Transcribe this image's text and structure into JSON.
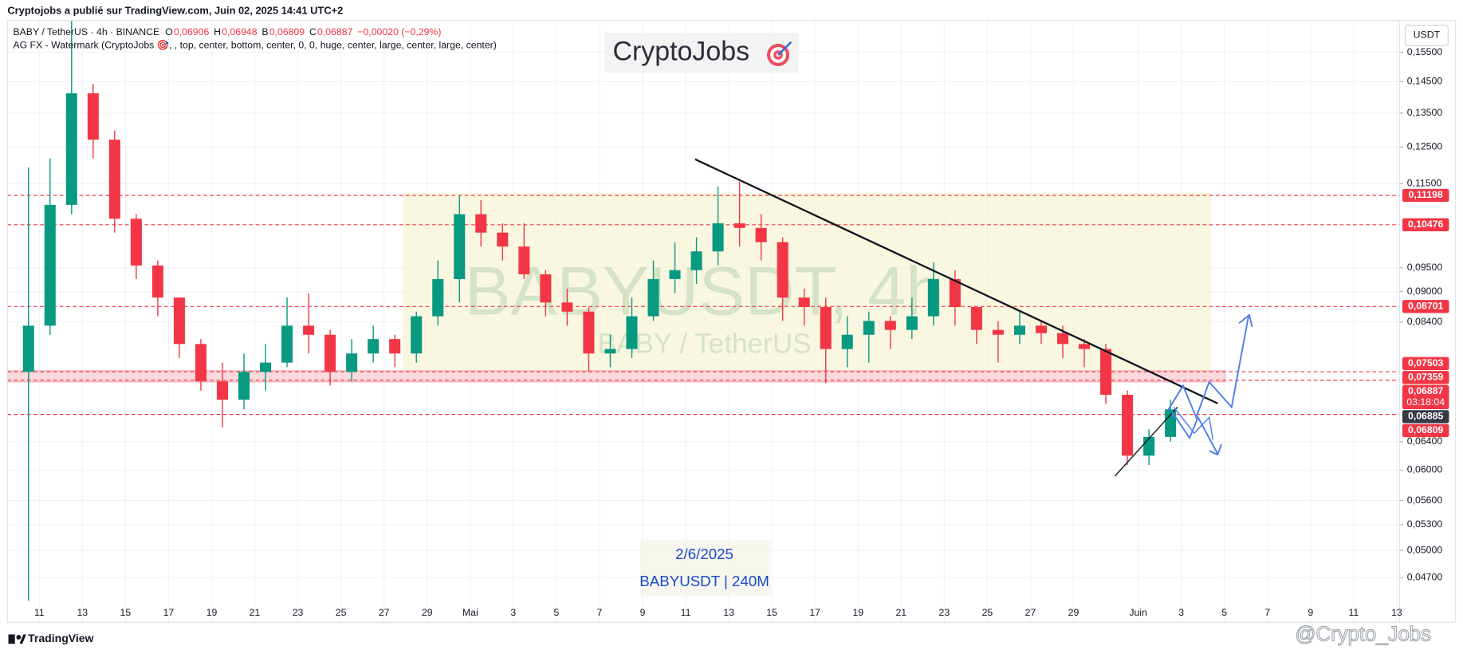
{
  "header": {
    "published": "Cryptojobs a publié sur TradingView.com, Juin 02, 2025 14:41 UTC+2",
    "symbol": "BABY / TetherUS · 4h · BINANCE",
    "ohlc": [
      "O",
      "0,06906",
      "H",
      "0,06948",
      "B",
      "0,06809",
      "C",
      "0,06887",
      "−0,00020 (−0,29%)"
    ],
    "indicator": "AG FX - Watermark (CryptoJobs 🎯, , top, center, bottom, center, 0, 0, huge, center, large, center, large, center)",
    "brand": "CryptoJobs",
    "watermark_symbol": "BABYUSDT, 4h",
    "watermark_name": "BABY / TetherUS",
    "date_note": "2/6/2025",
    "symbol_note": "BABYUSDT | 240M"
  },
  "chart_data": {
    "type": "candlestick",
    "currency": "USDT",
    "log_scale": true,
    "grid": true,
    "up_color": "#089981",
    "down_color": "#f23645",
    "candles": {
      "x": [
        "04-10",
        "04-11",
        "04-12",
        "04-13",
        "04-14",
        "04-15",
        "04-16",
        "04-17",
        "04-18",
        "04-19",
        "04-20",
        "04-21",
        "04-22",
        "04-23",
        "04-24",
        "04-25",
        "04-26",
        "04-27",
        "04-28",
        "04-29",
        "04-30",
        "05-01",
        "05-02",
        "05-03",
        "05-04",
        "05-05",
        "05-06",
        "05-07",
        "05-08",
        "05-09",
        "05-10",
        "05-11",
        "05-12",
        "05-13",
        "05-14",
        "05-15",
        "05-16",
        "05-17",
        "05-18",
        "05-19",
        "05-20",
        "05-21",
        "05-22",
        "05-23",
        "05-24",
        "05-25",
        "05-26",
        "05-27",
        "05-28",
        "05-29",
        "05-30",
        "05-31",
        "06-01",
        "06-02"
      ],
      "open": [
        0.075,
        0.0833,
        0.1096,
        0.1412,
        0.1271,
        0.1062,
        0.0955,
        0.0888,
        0.0799,
        0.0734,
        0.0704,
        0.075,
        0.0766,
        0.0833,
        0.0816,
        0.075,
        0.0782,
        0.0808,
        0.0782,
        0.0851,
        0.0926,
        0.1073,
        0.1029,
        0.0997,
        0.0936,
        0.0878,
        0.086,
        0.0782,
        0.079,
        0.0851,
        0.0926,
        0.0945,
        0.0986,
        0.1051,
        0.104,
        0.1007,
        0.0888,
        0.0869,
        0.079,
        0.0816,
        0.0842,
        0.0825,
        0.0851,
        0.0926,
        0.0869,
        0.0825,
        0.0816,
        0.0833,
        0.0819,
        0.0799,
        0.079,
        0.0712,
        0.062,
        0.0647
      ],
      "high": [
        0.1193,
        0.1218,
        0.1666,
        0.1443,
        0.1298,
        0.1073,
        0.0966,
        0.0888,
        0.0808,
        0.0766,
        0.0782,
        0.0799,
        0.0888,
        0.0897,
        0.0825,
        0.0808,
        0.0833,
        0.0816,
        0.086,
        0.0966,
        0.112,
        0.1108,
        0.1051,
        0.1051,
        0.0945,
        0.0906,
        0.0869,
        0.0816,
        0.0888,
        0.0966,
        0.1007,
        0.1018,
        0.1143,
        0.1155,
        0.1073,
        0.1018,
        0.0906,
        0.0888,
        0.0851,
        0.086,
        0.0851,
        0.0888,
        0.0962,
        0.0945,
        0.0869,
        0.0842,
        0.086,
        0.0842,
        0.0833,
        0.0808,
        0.0799,
        0.0719,
        0.0658,
        0.0704
      ],
      "low": [
        0.0446,
        0.0816,
        0.1073,
        0.1218,
        0.1029,
        0.0926,
        0.0851,
        0.0774,
        0.0719,
        0.0661,
        0.0689,
        0.0719,
        0.0758,
        0.0782,
        0.0727,
        0.0734,
        0.0766,
        0.0758,
        0.0766,
        0.0833,
        0.0878,
        0.0997,
        0.0966,
        0.0926,
        0.0851,
        0.0833,
        0.075,
        0.0758,
        0.0774,
        0.0842,
        0.0897,
        0.0916,
        0.0955,
        0.0997,
        0.0966,
        0.0842,
        0.0833,
        0.0731,
        0.0758,
        0.0766,
        0.079,
        0.0808,
        0.0833,
        0.0833,
        0.0799,
        0.0766,
        0.0799,
        0.0799,
        0.0774,
        0.0758,
        0.0697,
        0.0607,
        0.0607,
        0.064
      ],
      "close": [
        0.0833,
        0.1096,
        0.1412,
        0.1271,
        0.1062,
        0.0955,
        0.0888,
        0.0799,
        0.0734,
        0.0704,
        0.075,
        0.0766,
        0.0833,
        0.0816,
        0.075,
        0.0782,
        0.0808,
        0.0782,
        0.0851,
        0.0926,
        0.1073,
        0.1029,
        0.0997,
        0.0936,
        0.0878,
        0.086,
        0.0782,
        0.079,
        0.0851,
        0.0926,
        0.0945,
        0.0986,
        0.1051,
        0.104,
        0.1007,
        0.0888,
        0.0869,
        0.079,
        0.0816,
        0.0842,
        0.0825,
        0.0851,
        0.0926,
        0.0869,
        0.0825,
        0.0816,
        0.0833,
        0.0819,
        0.0799,
        0.079,
        0.0712,
        0.062,
        0.0647,
        0.06887
      ]
    },
    "xlim": [
      "04-10",
      "06-13"
    ],
    "xticks": [
      {
        "value": "04-11",
        "label": "11"
      },
      {
        "value": "04-13",
        "label": "13"
      },
      {
        "value": "04-15",
        "label": "15"
      },
      {
        "value": "04-17",
        "label": "17"
      },
      {
        "value": "04-19",
        "label": "19"
      },
      {
        "value": "04-21",
        "label": "21"
      },
      {
        "value": "04-23",
        "label": "23"
      },
      {
        "value": "04-25",
        "label": "25"
      },
      {
        "value": "04-27",
        "label": "27"
      },
      {
        "value": "04-29",
        "label": "29"
      },
      {
        "value": "05-01",
        "label": "Mai"
      },
      {
        "value": "05-03",
        "label": "3"
      },
      {
        "value": "05-05",
        "label": "5"
      },
      {
        "value": "05-07",
        "label": "7"
      },
      {
        "value": "05-09",
        "label": "9"
      },
      {
        "value": "05-11",
        "label": "11"
      },
      {
        "value": "05-13",
        "label": "13"
      },
      {
        "value": "05-15",
        "label": "15"
      },
      {
        "value": "05-17",
        "label": "17"
      },
      {
        "value": "05-19",
        "label": "19"
      },
      {
        "value": "05-21",
        "label": "21"
      },
      {
        "value": "05-23",
        "label": "23"
      },
      {
        "value": "05-25",
        "label": "25"
      },
      {
        "value": "05-27",
        "label": "27"
      },
      {
        "value": "05-29",
        "label": "29"
      },
      {
        "value": "06-01",
        "label": "Juin"
      },
      {
        "value": "06-03",
        "label": "3"
      },
      {
        "value": "06-05",
        "label": "5"
      },
      {
        "value": "06-07",
        "label": "7"
      },
      {
        "value": "06-09",
        "label": "9"
      },
      {
        "value": "06-11",
        "label": "11"
      },
      {
        "value": "06-13",
        "label": "13"
      }
    ],
    "ylim": [
      0.0443,
      0.1666
    ],
    "yticks": [
      {
        "value": 0.155,
        "label": "0,15500"
      },
      {
        "value": 0.145,
        "label": "0,14500"
      },
      {
        "value": 0.135,
        "label": "0,13500"
      },
      {
        "value": 0.125,
        "label": "0,12500"
      },
      {
        "value": 0.115,
        "label": "0,11500"
      },
      {
        "value": 0.095,
        "label": "0,09500"
      },
      {
        "value": 0.09,
        "label": "0,09000"
      },
      {
        "value": 0.084,
        "label": "0,08400"
      },
      {
        "value": 0.064,
        "label": "0,06400"
      },
      {
        "value": 0.06,
        "label": "0,06000"
      },
      {
        "value": 0.056,
        "label": "0,05600"
      },
      {
        "value": 0.053,
        "label": "0,05300"
      },
      {
        "value": 0.05,
        "label": "0,05000"
      },
      {
        "value": 0.047,
        "label": "0,04700"
      }
    ],
    "price_lines": [
      {
        "value": 0.11198,
        "label": "0,11198",
        "color": "#f23645",
        "dashed": true
      },
      {
        "value": 0.10476,
        "label": "0,10476",
        "color": "#f23645",
        "dashed": true
      },
      {
        "value": 0.08701,
        "label": "0,08701",
        "color": "#f23645",
        "dashed": true
      },
      {
        "value": 0.07503,
        "label": "0,07503",
        "color": "#f23645",
        "dashed": true
      },
      {
        "value": 0.07359,
        "label": "0,07359",
        "color": "#f23645",
        "dashed": true
      },
      {
        "value": 0.06887,
        "label": "0,06887",
        "color": "#f23645",
        "dashed": false,
        "countdown": "03:18:04"
      },
      {
        "value": 0.06885,
        "label": "0,06885",
        "color": "#363a45",
        "dashed": false
      },
      {
        "value": 0.06809,
        "label": "0,06809",
        "color": "#f23645",
        "dashed": true
      }
    ]
  },
  "footer": {
    "logo": "TradingView",
    "watermark": "@Crypto_Jobs"
  }
}
